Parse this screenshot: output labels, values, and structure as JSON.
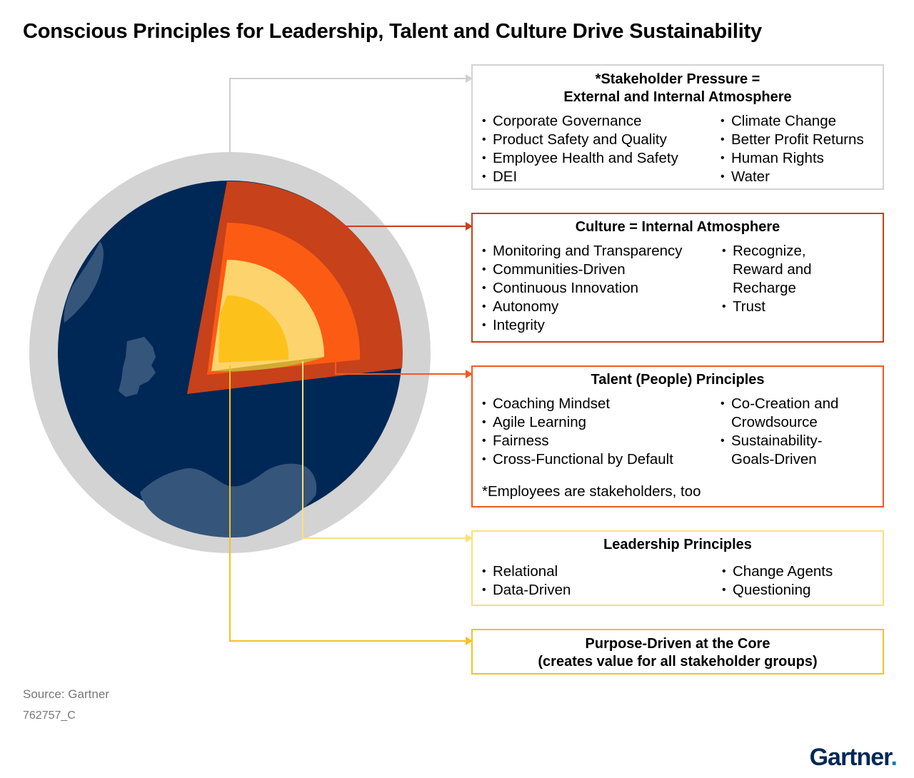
{
  "title": "Conscious Principles for Leadership, Talent and Culture Drive Sustainability",
  "colors": {
    "globe_rim": "#d3d3d3",
    "globe_ocean": "#002856",
    "globe_land": "#36557a",
    "crust_dark": "#a8360f",
    "crust": "#c7411a",
    "mantle": "#fc5b14",
    "outer_core": "#fdd36e",
    "inner_core": "#fcc21b",
    "stakeholder_border": "#d4d4d4",
    "culture_border": "#c7411a",
    "talent_border": "#f05a23",
    "leadership_border": "#fbe07a",
    "purpose_border": "#f6c026",
    "brand": "#002856"
  },
  "boxes": {
    "stakeholder": {
      "title_line1": "*Stakeholder Pressure =",
      "title_line2": "External and Internal Atmosphere",
      "col1": [
        "Corporate Governance",
        "Product Safety and Quality",
        "Employee Health and Safety",
        "DEI"
      ],
      "col2": [
        "Climate Change",
        "Better Profit Returns",
        "Human Rights",
        "Water"
      ]
    },
    "culture": {
      "title": "Culture = Internal Atmosphere",
      "col1": [
        "Monitoring and Transparency",
        "Communities-Driven",
        "Continuous Innovation",
        "Autonomy",
        "Integrity"
      ],
      "col2": [
        "Recognize, Reward and Recharge",
        "Trust"
      ]
    },
    "talent": {
      "title": "Talent (People) Principles",
      "col1": [
        "Coaching Mindset",
        "Agile Learning",
        "Fairness",
        "Cross-Functional by Default"
      ],
      "col2": [
        "Co-Creation and Crowdsource",
        "Sustainability-Goals-Driven"
      ],
      "note": "*Employees are stakeholders, too"
    },
    "leadership": {
      "title": "Leadership Principles",
      "col1": [
        "Relational",
        "Data-Driven"
      ],
      "col2": [
        "Change Agents",
        "Questioning"
      ]
    },
    "purpose": {
      "title_line1": "Purpose-Driven at the Core",
      "title_line2": "(creates value for all stakeholder groups)"
    }
  },
  "footer": {
    "source": "Source: Gartner",
    "code": "762757_C"
  },
  "logo": {
    "text": "Gartner",
    "dot": "."
  }
}
